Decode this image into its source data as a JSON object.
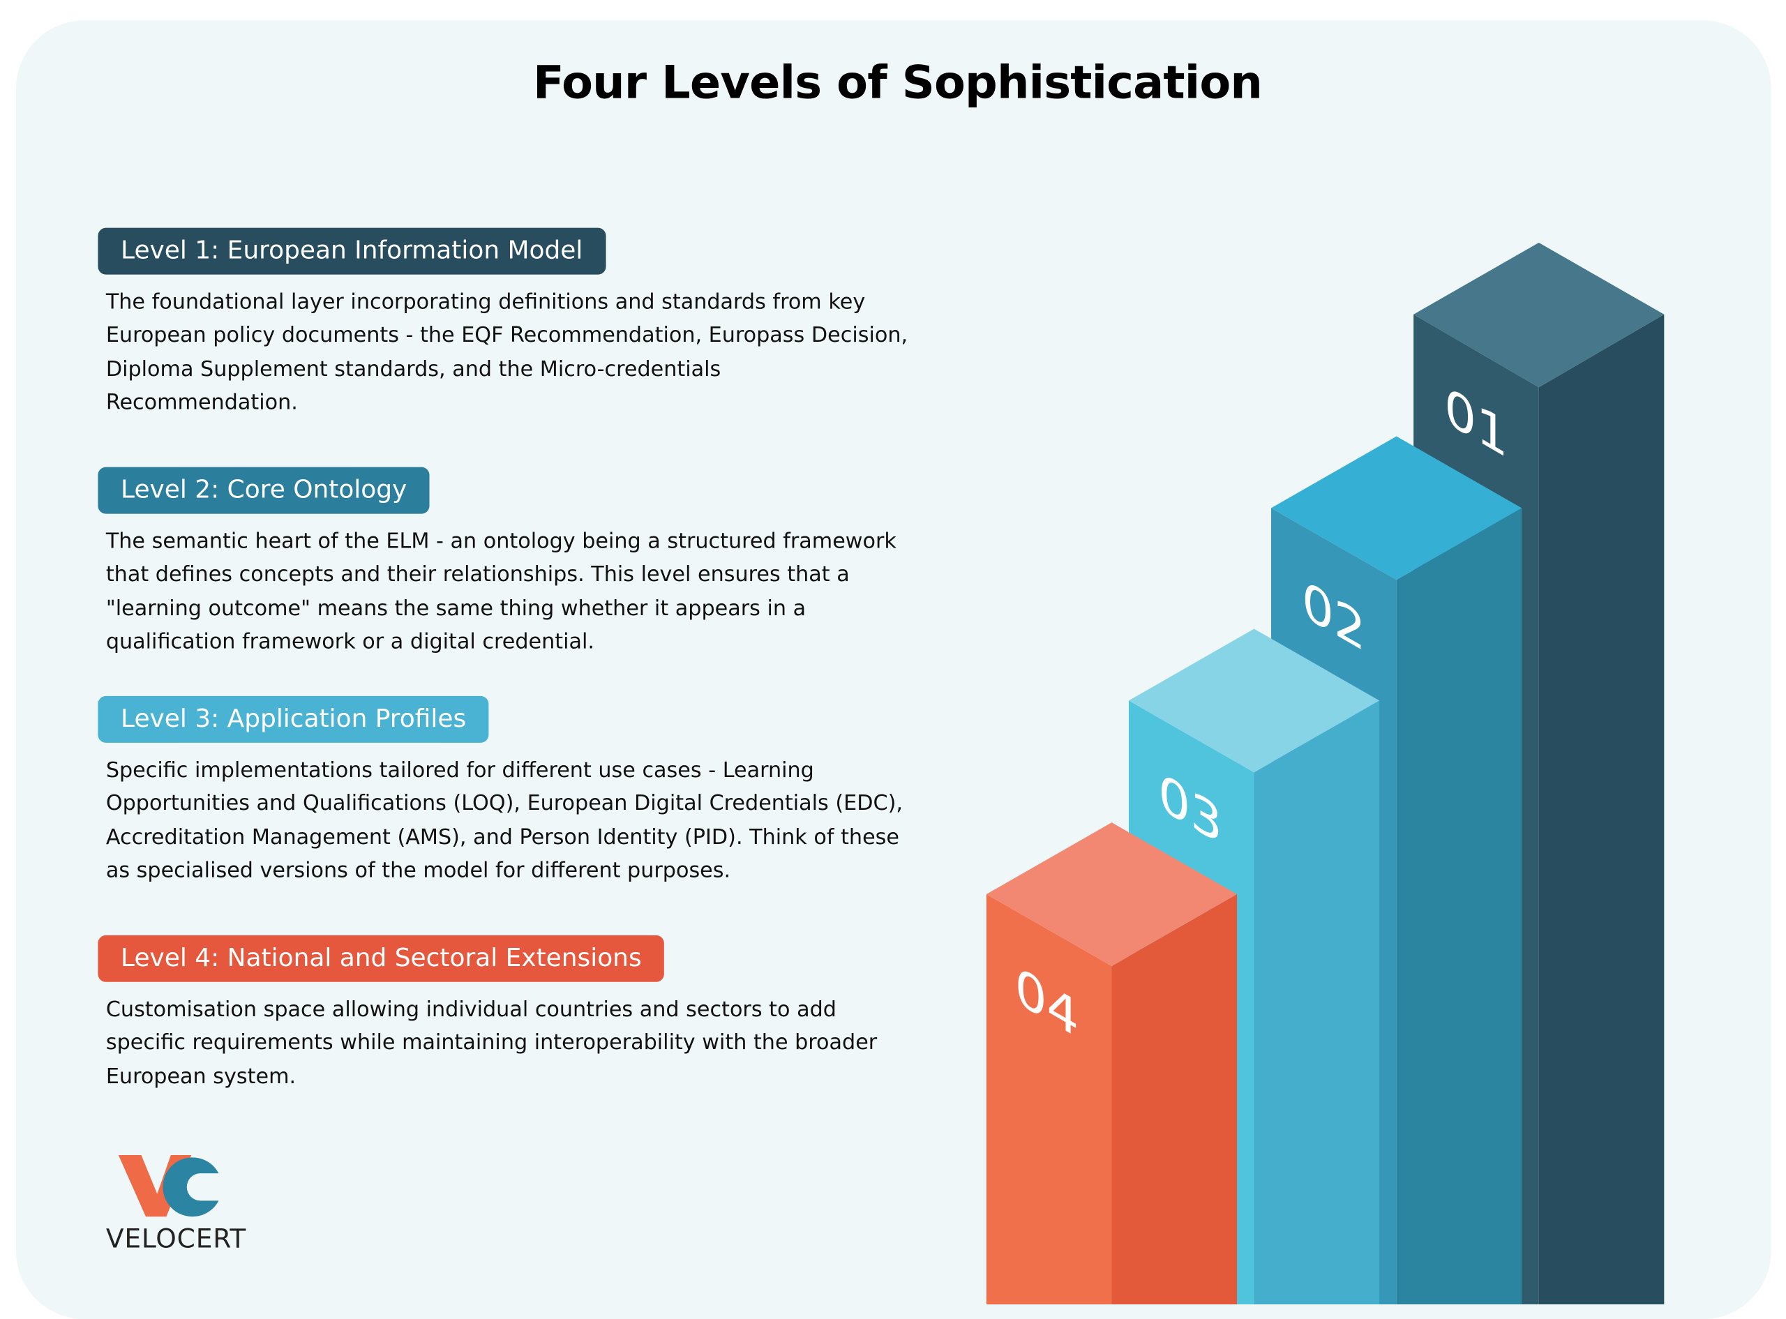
{
  "title": "Four Levels of Sophistication",
  "levels": [
    {
      "heading": "Level 1: European Information Model",
      "body": "The foundational layer incorporating definitions and standards from key European policy documents - the EQF Recommendation, Europass Decision, Diploma Supplement standards, and the Micro-credentials Recommendation."
    },
    {
      "heading": "Level 2: Core Ontology",
      "body": "The semantic heart of the ELM - an ontology being a structured framework that defines concepts and their relationships. This level ensures that a \"learning outcome\" means the same thing whether it appears in a qualification framework or a digital credential."
    },
    {
      "heading": "Level 3: Application Profiles",
      "body": "Specific implementations tailored for different use cases - Learning Opportunities and Qualifications (LOQ), European Digital Credentials (EDC), Accreditation Management (AMS), and Person Identity (PID). Think of these as specialised versions of the model for different purposes."
    },
    {
      "heading": "Level 4: National and Sectoral Extensions",
      "body": "Customisation space allowing individual countries and sectors to add specific requirements while maintaining interoperability with the broader European system."
    }
  ],
  "pillars": [
    "01",
    "02",
    "03",
    "04"
  ],
  "logo": {
    "name": "VELOCERT"
  }
}
